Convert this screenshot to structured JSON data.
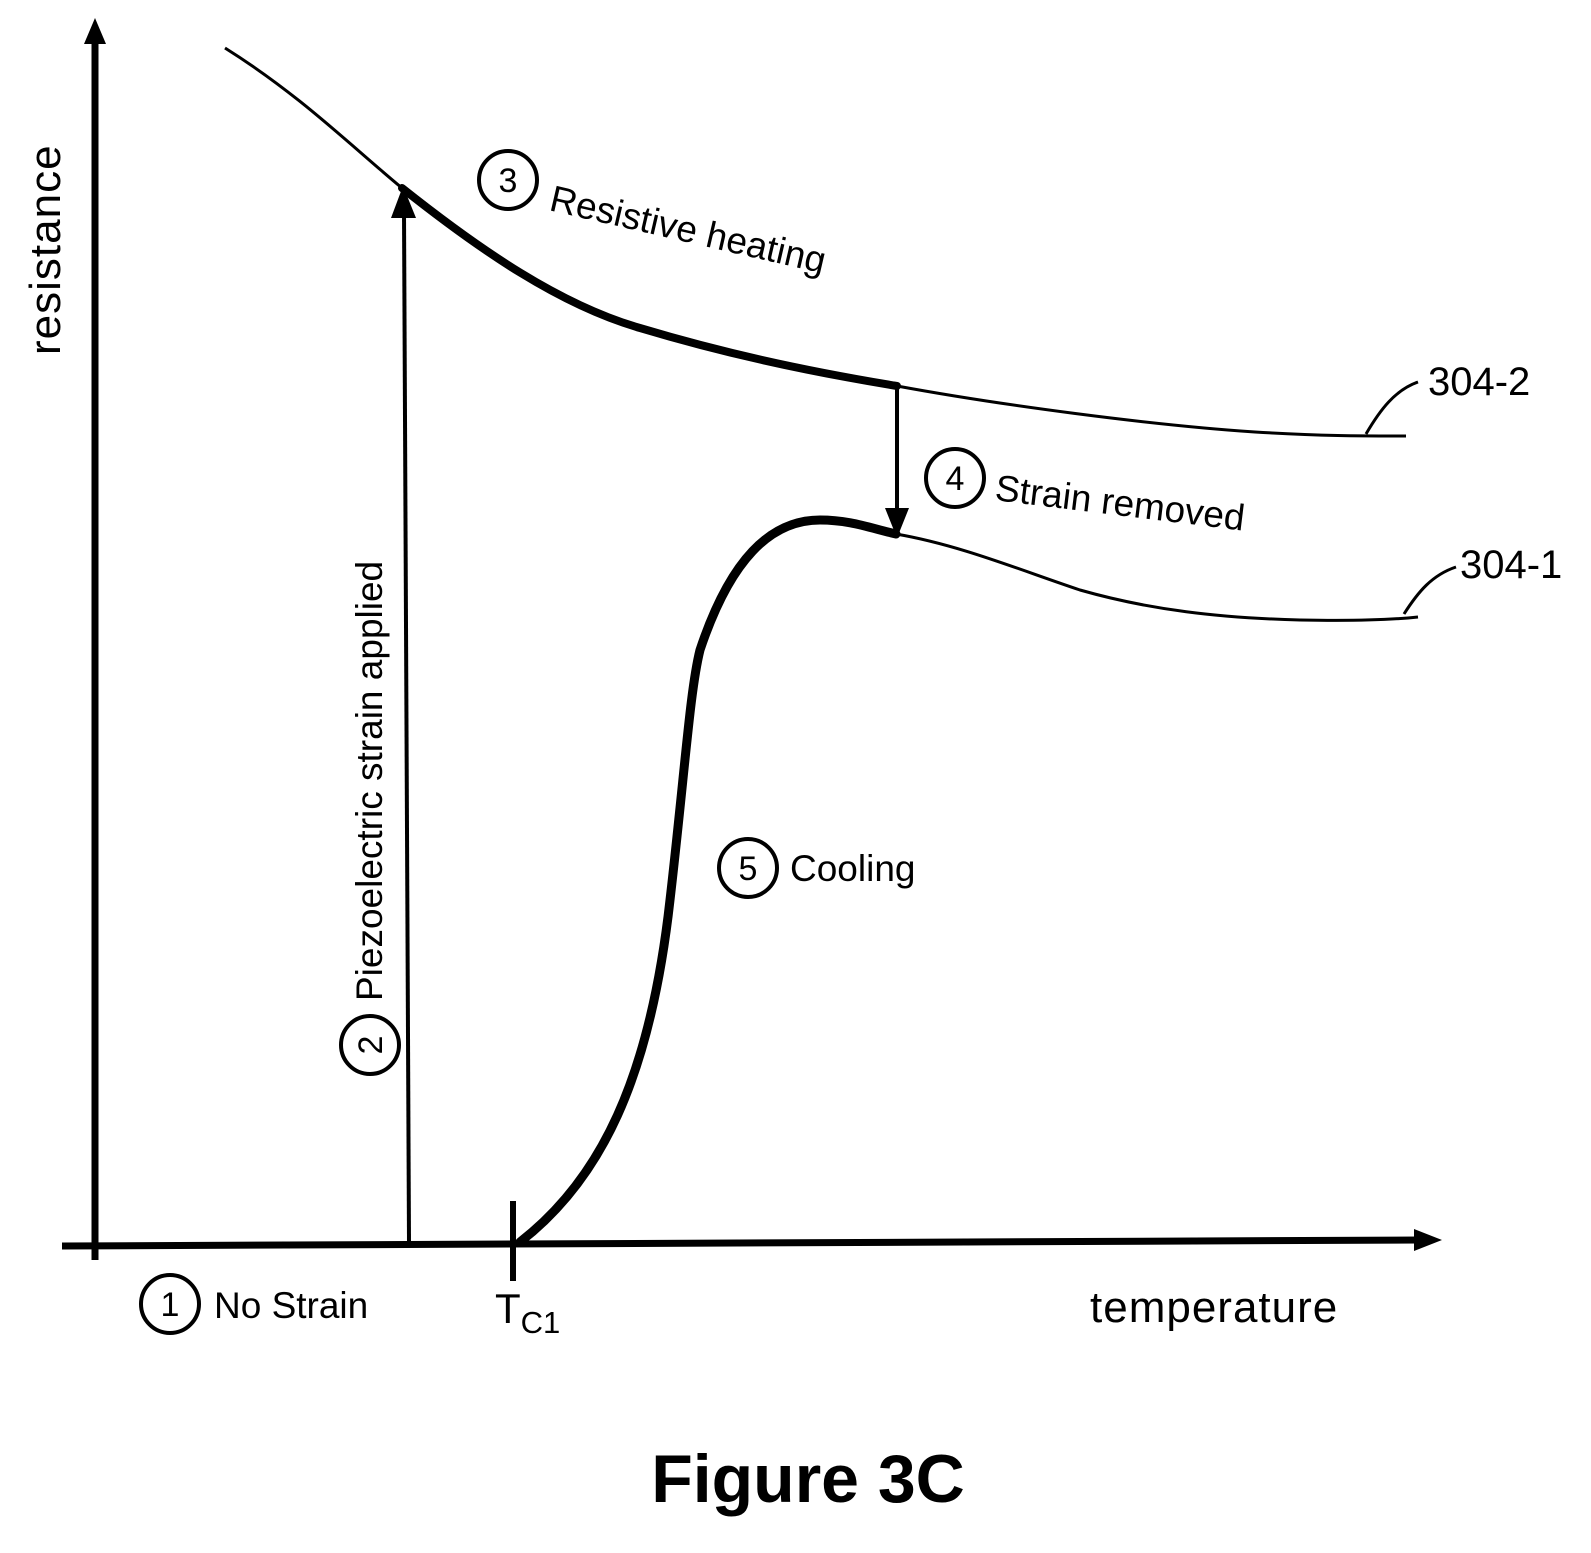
{
  "chart_data": {
    "type": "line",
    "title": "",
    "xlabel": "temperature",
    "ylabel": "resistance",
    "x_tick": {
      "base": "T",
      "subscript": "C1"
    },
    "series": [
      {
        "name": "304-2"
      },
      {
        "name": "304-1"
      }
    ],
    "steps": [
      {
        "number": "1",
        "label": "No Strain"
      },
      {
        "number": "2",
        "label": "Piezoelectric strain applied"
      },
      {
        "number": "3",
        "label": "Resistive heating"
      },
      {
        "number": "4",
        "label": "Strain removed"
      },
      {
        "number": "5",
        "label": "Cooling"
      }
    ],
    "grid": false,
    "legend": "none"
  },
  "caption": "Figure 3C"
}
